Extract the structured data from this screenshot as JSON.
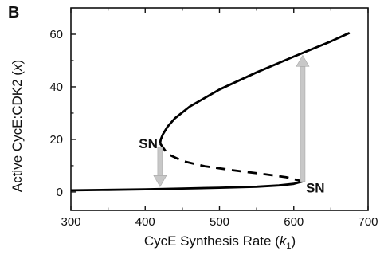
{
  "panel_label": "B",
  "chart_data": {
    "type": "line",
    "xlabel": "CycE Synthesis Rate (k1)",
    "xlabel_parts": {
      "main": "CycE Synthesis Rate (",
      "var": "k",
      "sub": "1",
      "close": ")"
    },
    "ylabel": "Active CycE:CDK2 (x)",
    "ylabel_parts": {
      "main": "Active CycE:CDK2 (",
      "var": "x",
      "close": ")"
    },
    "xlim": [
      300,
      700
    ],
    "ylim": [
      -7,
      70
    ],
    "xticks": [
      300,
      400,
      500,
      600,
      700
    ],
    "yticks": [
      0,
      20,
      40,
      60
    ],
    "grid": false,
    "series": [
      {
        "style": "solid",
        "x": [
          300,
          350,
          400,
          450,
          500,
          550,
          580,
          600,
          612
        ],
        "y": [
          0.6,
          0.8,
          1.0,
          1.3,
          1.6,
          2.0,
          2.5,
          3.1,
          4.0
        ]
      },
      {
        "style": "dashed",
        "x": [
          420,
          430,
          450,
          480,
          520,
          560,
          590,
          612
        ],
        "y": [
          18.5,
          14.5,
          11.8,
          9.8,
          8.2,
          6.8,
          5.6,
          4.0
        ]
      },
      {
        "style": "solid",
        "x": [
          420,
          421,
          424,
          430,
          440,
          460,
          500,
          550,
          600,
          650,
          675
        ],
        "y": [
          18.5,
          20.0,
          22.0,
          24.8,
          28.0,
          32.5,
          39.0,
          45.5,
          51.5,
          57.3,
          60.5
        ]
      }
    ],
    "transitions": [
      {
        "x": 420,
        "from": 17,
        "to": 2,
        "direction": "down"
      },
      {
        "x": 612,
        "from": 4,
        "to": 52,
        "direction": "up"
      }
    ],
    "annotations": [
      {
        "text": "SN",
        "x": 420,
        "y": 18.5
      },
      {
        "text": "SN",
        "x": 612,
        "y": 4.0
      }
    ],
    "colors": {
      "line": "#000000",
      "arrow": "#c8c8c8",
      "arrow_edge": "#a8a8a8"
    }
  }
}
